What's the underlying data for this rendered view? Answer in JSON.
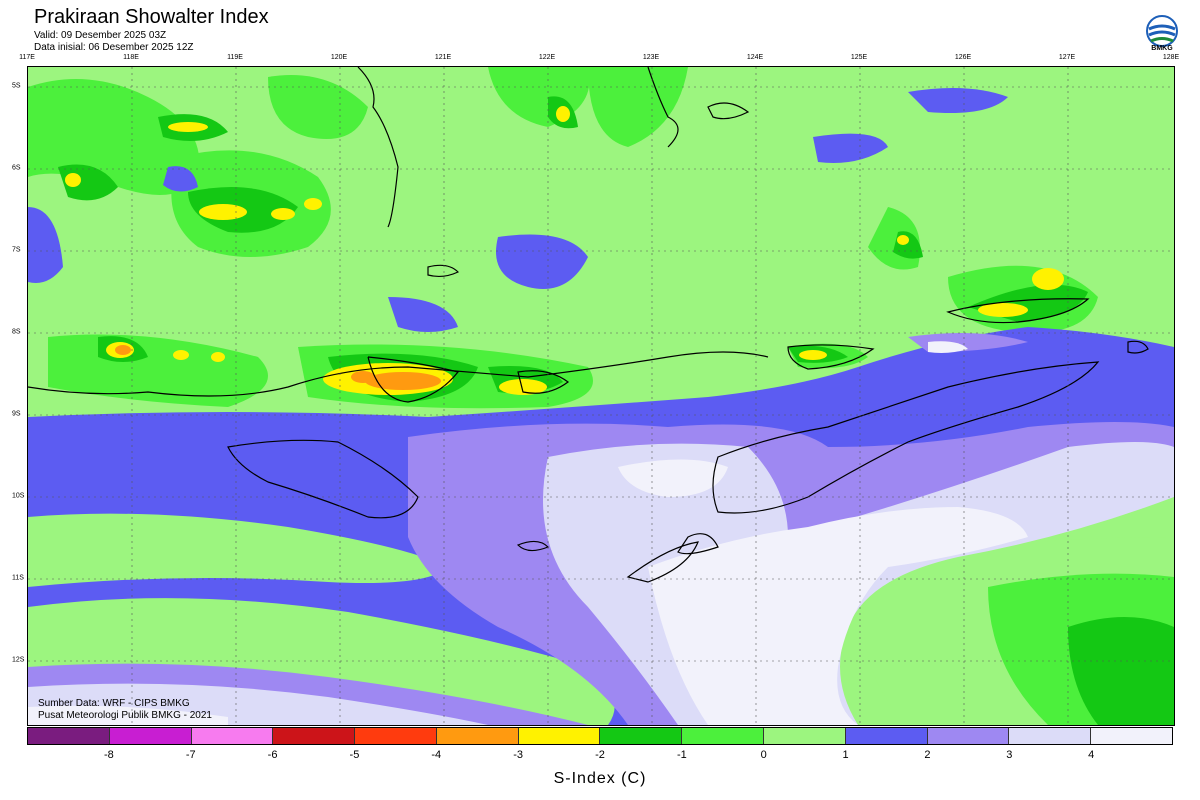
{
  "header": {
    "title": "Prakiraan Showalter Index",
    "valid": "Valid: 09 Desember 2025 03Z",
    "init": "Data inisial: 06 Desember 2025 12Z",
    "logo_text": "BMKG"
  },
  "axes": {
    "lon_labels": [
      "117E",
      "118E",
      "119E",
      "120E",
      "121E",
      "122E",
      "123E",
      "124E",
      "125E",
      "126E",
      "127E",
      "128E"
    ],
    "lat_labels": [
      "5S",
      "6S",
      "7S",
      "8S",
      "9S",
      "10S",
      "11S",
      "12S"
    ]
  },
  "credits": {
    "source": "Sumber Data: WRF - CIPS BMKG",
    "center": "Pusat Meteorologi Publik BMKG - 2021"
  },
  "colorbar": {
    "colors": [
      "#7a1c7f",
      "#c81ed2",
      "#f77bef",
      "#cc1419",
      "#ff3b0e",
      "#ff9a10",
      "#fff200",
      "#14c814",
      "#4cf03c",
      "#9cf57f",
      "#5c5cf2",
      "#9e88f2",
      "#dcdcf8",
      "#f2f2fb"
    ],
    "tick_labels": [
      "-8",
      "-7",
      "-6",
      "-5",
      "-4",
      "-3",
      "-2",
      "-1",
      "0",
      "1",
      "2",
      "3",
      "4"
    ],
    "label": "S-Index (C)"
  },
  "legend_colors": {
    "land_green": "#9cf57f",
    "green": "#4cf03c",
    "dark_green": "#14c814",
    "yellow": "#fff200",
    "orange": "#ff9a10",
    "blue": "#5c5cf2",
    "lavender": "#9e88f2",
    "pale": "#dcdcf8",
    "white": "#f2f2fb"
  }
}
